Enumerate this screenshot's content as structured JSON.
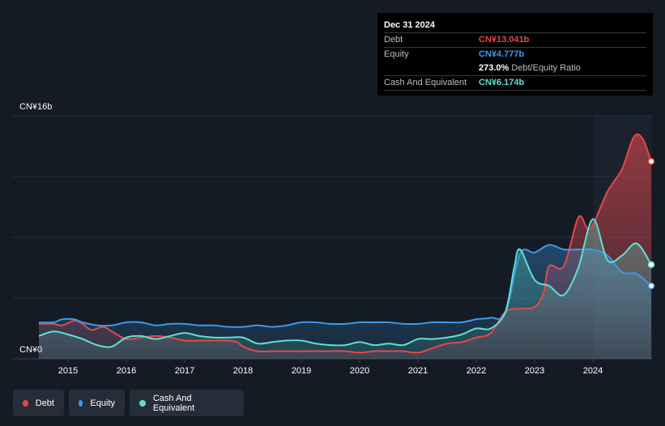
{
  "tooltip": {
    "date": "Dec 31 2024",
    "rows": [
      {
        "label": "Debt",
        "value": "CN¥13.041b",
        "color": "#e5484d"
      },
      {
        "label": "Equity",
        "value": "CN¥4.777b",
        "color": "#3b9be8"
      },
      {
        "label": "",
        "value": "273.0%",
        "color": "#ffffff",
        "suffix": "Debt/Equity Ratio"
      },
      {
        "label": "Cash And Equivalent",
        "value": "CN¥6.174b",
        "color": "#5fe0cf"
      }
    ]
  },
  "legend": [
    {
      "label": "Debt",
      "color": "#e5484d"
    },
    {
      "label": "Equity",
      "color": "#3b9be8"
    },
    {
      "label": "Cash And Equivalent",
      "color": "#5fe0cf"
    }
  ],
  "chart_data": {
    "type": "area",
    "title": "",
    "ylabel": "",
    "xlabel": "",
    "y_top_label": "CN¥16b",
    "y_bottom_label": "CN¥0",
    "ylim": [
      0,
      16
    ],
    "xlim": [
      2014.5,
      2025.0
    ],
    "grid": true,
    "legend_position": "bottom-left",
    "x_ticks": [
      {
        "x": 2015,
        "label": "2015"
      },
      {
        "x": 2016,
        "label": "2016"
      },
      {
        "x": 2017,
        "label": "2017"
      },
      {
        "x": 2018,
        "label": "2018"
      },
      {
        "x": 2019,
        "label": "2019"
      },
      {
        "x": 2020,
        "label": "2020"
      },
      {
        "x": 2021,
        "label": "2021"
      },
      {
        "x": 2022,
        "label": "2022"
      },
      {
        "x": 2023,
        "label": "2023"
      },
      {
        "x": 2024,
        "label": "2024"
      }
    ],
    "series": [
      {
        "name": "Debt",
        "color": "#e5484d",
        "points": [
          [
            2014.5,
            2.3
          ],
          [
            2014.75,
            2.3
          ],
          [
            2014.9,
            2.2
          ],
          [
            2015.1,
            2.5
          ],
          [
            2015.25,
            2.3
          ],
          [
            2015.4,
            1.9
          ],
          [
            2015.6,
            2.1
          ],
          [
            2015.75,
            1.8
          ],
          [
            2016.0,
            1.3
          ],
          [
            2016.25,
            1.4
          ],
          [
            2016.5,
            1.5
          ],
          [
            2016.75,
            1.4
          ],
          [
            2017.0,
            1.2
          ],
          [
            2017.25,
            1.2
          ],
          [
            2017.5,
            1.2
          ],
          [
            2017.75,
            1.2
          ],
          [
            2017.9,
            1.1
          ],
          [
            2018.0,
            0.8
          ],
          [
            2018.25,
            0.5
          ],
          [
            2018.5,
            0.5
          ],
          [
            2018.75,
            0.5
          ],
          [
            2019.0,
            0.5
          ],
          [
            2019.25,
            0.5
          ],
          [
            2019.5,
            0.5
          ],
          [
            2019.75,
            0.5
          ],
          [
            2020.0,
            0.4
          ],
          [
            2020.25,
            0.5
          ],
          [
            2020.5,
            0.5
          ],
          [
            2020.75,
            0.5
          ],
          [
            2021.0,
            0.4
          ],
          [
            2021.25,
            0.7
          ],
          [
            2021.5,
            1.0
          ],
          [
            2021.75,
            1.1
          ],
          [
            2022.0,
            1.4
          ],
          [
            2022.25,
            1.7
          ],
          [
            2022.5,
            3.1
          ],
          [
            2022.75,
            3.3
          ],
          [
            2023.0,
            3.4
          ],
          [
            2023.15,
            4.3
          ],
          [
            2023.25,
            6.1
          ],
          [
            2023.5,
            6.1
          ],
          [
            2023.75,
            9.3
          ],
          [
            2023.9,
            8.6
          ],
          [
            2024.0,
            8.8
          ],
          [
            2024.25,
            11.0
          ],
          [
            2024.5,
            12.5
          ],
          [
            2024.7,
            14.6
          ],
          [
            2024.85,
            14.5
          ],
          [
            2025.0,
            13.0
          ]
        ]
      },
      {
        "name": "Equity",
        "color": "#3b9be8",
        "points": [
          [
            2014.5,
            2.4
          ],
          [
            2014.75,
            2.4
          ],
          [
            2014.9,
            2.6
          ],
          [
            2015.1,
            2.6
          ],
          [
            2015.25,
            2.4
          ],
          [
            2015.5,
            2.2
          ],
          [
            2015.75,
            2.2
          ],
          [
            2016.0,
            2.4
          ],
          [
            2016.25,
            2.4
          ],
          [
            2016.5,
            2.2
          ],
          [
            2016.75,
            2.3
          ],
          [
            2017.0,
            2.3
          ],
          [
            2017.25,
            2.2
          ],
          [
            2017.5,
            2.2
          ],
          [
            2017.75,
            2.1
          ],
          [
            2018.0,
            2.1
          ],
          [
            2018.25,
            2.2
          ],
          [
            2018.5,
            2.1
          ],
          [
            2018.75,
            2.2
          ],
          [
            2019.0,
            2.4
          ],
          [
            2019.25,
            2.4
          ],
          [
            2019.5,
            2.3
          ],
          [
            2019.75,
            2.3
          ],
          [
            2020.0,
            2.4
          ],
          [
            2020.25,
            2.4
          ],
          [
            2020.5,
            2.4
          ],
          [
            2020.75,
            2.3
          ],
          [
            2021.0,
            2.3
          ],
          [
            2021.25,
            2.4
          ],
          [
            2021.5,
            2.4
          ],
          [
            2021.75,
            2.4
          ],
          [
            2022.0,
            2.6
          ],
          [
            2022.25,
            2.7
          ],
          [
            2022.5,
            3.0
          ],
          [
            2022.75,
            6.9
          ],
          [
            2023.0,
            7.0
          ],
          [
            2023.25,
            7.5
          ],
          [
            2023.5,
            7.2
          ],
          [
            2023.75,
            7.2
          ],
          [
            2024.0,
            7.2
          ],
          [
            2024.25,
            6.8
          ],
          [
            2024.5,
            5.7
          ],
          [
            2024.75,
            5.6
          ],
          [
            2025.0,
            4.8
          ]
        ]
      },
      {
        "name": "Cash And Equivalent",
        "color": "#5fe0cf",
        "points": [
          [
            2014.5,
            1.5
          ],
          [
            2014.75,
            1.8
          ],
          [
            2015.0,
            1.6
          ],
          [
            2015.25,
            1.3
          ],
          [
            2015.5,
            0.9
          ],
          [
            2015.75,
            0.8
          ],
          [
            2016.0,
            1.4
          ],
          [
            2016.25,
            1.5
          ],
          [
            2016.5,
            1.3
          ],
          [
            2016.75,
            1.5
          ],
          [
            2017.0,
            1.7
          ],
          [
            2017.25,
            1.5
          ],
          [
            2017.5,
            1.4
          ],
          [
            2017.75,
            1.4
          ],
          [
            2018.0,
            1.4
          ],
          [
            2018.25,
            1.0
          ],
          [
            2018.5,
            1.1
          ],
          [
            2018.75,
            1.2
          ],
          [
            2019.0,
            1.2
          ],
          [
            2019.25,
            1.0
          ],
          [
            2019.5,
            0.9
          ],
          [
            2019.75,
            0.9
          ],
          [
            2020.0,
            1.1
          ],
          [
            2020.25,
            0.9
          ],
          [
            2020.5,
            1.0
          ],
          [
            2020.75,
            0.9
          ],
          [
            2021.0,
            1.3
          ],
          [
            2021.25,
            1.3
          ],
          [
            2021.5,
            1.4
          ],
          [
            2021.75,
            1.6
          ],
          [
            2022.0,
            2.0
          ],
          [
            2022.25,
            2.0
          ],
          [
            2022.5,
            3.1
          ],
          [
            2022.65,
            6.0
          ],
          [
            2022.75,
            7.2
          ],
          [
            2023.0,
            5.2
          ],
          [
            2023.25,
            4.8
          ],
          [
            2023.5,
            4.2
          ],
          [
            2023.75,
            6.0
          ],
          [
            2024.0,
            9.2
          ],
          [
            2024.25,
            6.5
          ],
          [
            2024.5,
            6.8
          ],
          [
            2024.75,
            7.6
          ],
          [
            2025.0,
            6.2
          ]
        ]
      }
    ]
  }
}
